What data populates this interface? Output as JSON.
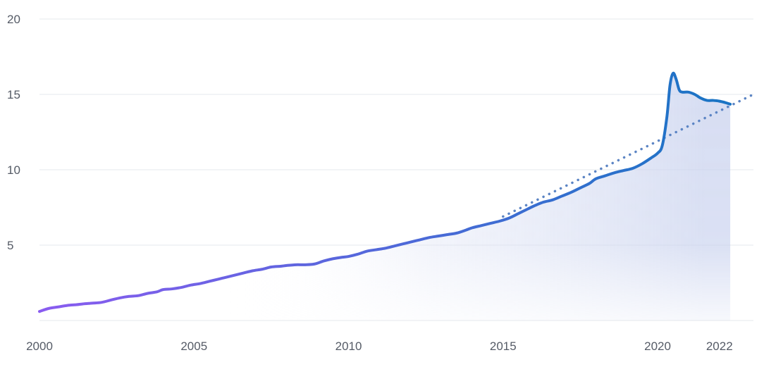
{
  "chart_data": {
    "type": "line",
    "title": "",
    "xlabel": "",
    "ylabel": "",
    "xlim": [
      2000,
      2023.1
    ],
    "ylim": [
      0,
      20
    ],
    "grid": true,
    "legend": "none",
    "x_ticks": [
      2000,
      2005,
      2010,
      2015,
      2020,
      2022
    ],
    "y_ticks": [
      5,
      10,
      15,
      20
    ],
    "x_tick_labels": [
      "2000",
      "2005",
      "2010",
      "2015",
      "2020",
      "2022"
    ],
    "y_tick_labels": [
      "5",
      "10",
      "15",
      "20"
    ],
    "colors": {
      "series_start": "#8a5cf0",
      "series_end": "#1a74c4",
      "trend": "#5b84c4",
      "fill": "#c9d2ee",
      "grid": "#e6e8ec"
    },
    "series": [
      {
        "kind": "actual",
        "x": [
          2000.0,
          2000.3,
          2000.6,
          2000.9,
          2001.2,
          2001.4,
          2001.7,
          2002.0,
          2002.3,
          2002.6,
          2002.9,
          2003.2,
          2003.5,
          2003.8,
          2004.0,
          2004.3,
          2004.6,
          2004.9,
          2005.2,
          2005.5,
          2005.8,
          2006.0,
          2006.3,
          2006.6,
          2006.9,
          2007.2,
          2007.5,
          2007.8,
          2008.0,
          2008.3,
          2008.6,
          2008.9,
          2009.2,
          2009.5,
          2009.8,
          2010.0,
          2010.3,
          2010.6,
          2010.9,
          2011.2,
          2011.5,
          2011.8,
          2012.0,
          2012.3,
          2012.6,
          2012.9,
          2013.2,
          2013.5,
          2013.8,
          2014.0,
          2014.3,
          2014.6,
          2014.9,
          2015.2,
          2015.5,
          2015.8,
          2016.0,
          2016.3,
          2016.6,
          2016.9,
          2017.2,
          2017.5,
          2017.8,
          2018.0,
          2018.3,
          2018.6,
          2018.9,
          2019.2,
          2019.5,
          2019.8,
          2020.0,
          2020.15,
          2020.3,
          2020.4,
          2020.5,
          2020.6,
          2020.7,
          2020.8,
          2021.0,
          2021.2,
          2021.4,
          2021.6,
          2021.8,
          2022.0,
          2022.2,
          2022.35
        ],
        "y": [
          0.6,
          0.8,
          0.9,
          1.0,
          1.05,
          1.1,
          1.15,
          1.2,
          1.35,
          1.5,
          1.6,
          1.65,
          1.8,
          1.9,
          2.05,
          2.1,
          2.2,
          2.35,
          2.45,
          2.6,
          2.75,
          2.85,
          3.0,
          3.15,
          3.3,
          3.4,
          3.55,
          3.6,
          3.65,
          3.7,
          3.7,
          3.75,
          3.95,
          4.1,
          4.2,
          4.25,
          4.4,
          4.6,
          4.7,
          4.8,
          4.95,
          5.1,
          5.2,
          5.35,
          5.5,
          5.6,
          5.7,
          5.8,
          6.0,
          6.15,
          6.3,
          6.45,
          6.6,
          6.8,
          7.1,
          7.4,
          7.6,
          7.85,
          8.0,
          8.25,
          8.5,
          8.8,
          9.1,
          9.4,
          9.6,
          9.8,
          9.95,
          10.1,
          10.4,
          10.8,
          11.1,
          11.6,
          13.5,
          15.6,
          16.4,
          16.0,
          15.3,
          15.15,
          15.15,
          15.0,
          14.75,
          14.6,
          14.6,
          14.55,
          14.45,
          14.35
        ]
      },
      {
        "kind": "trend",
        "x": [
          2015.0,
          2023.1
        ],
        "y": [
          6.9,
          15.0
        ]
      }
    ]
  }
}
